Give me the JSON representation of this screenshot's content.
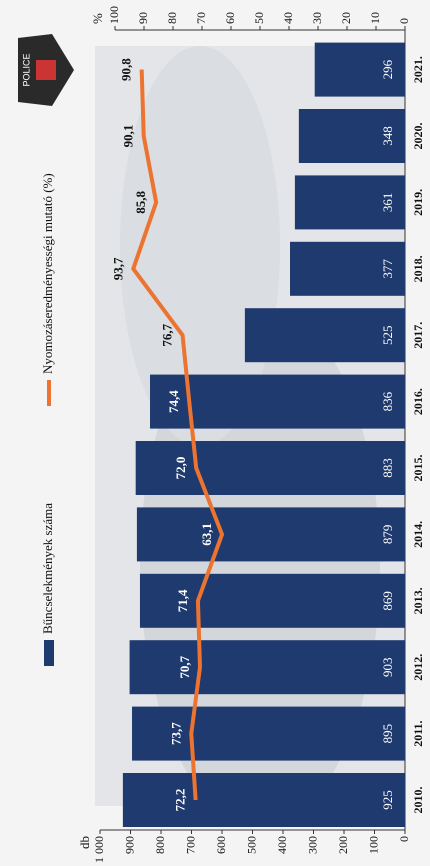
{
  "chart_data": {
    "type": "bar_line",
    "badge_text": "POLICE",
    "categories": [
      "2010.",
      "2011.",
      "2012.",
      "2013.",
      "2014.",
      "2015.",
      "2016.",
      "2017.",
      "2018.",
      "2019.",
      "2020.",
      "2021."
    ],
    "series": [
      {
        "name": "Bűncselekmények száma",
        "type": "bar",
        "color": "#1f3a6e",
        "values": [
          925,
          895,
          903,
          869,
          879,
          883,
          836,
          525,
          377,
          361,
          348,
          296
        ]
      },
      {
        "name": "Nyomozáseredményességi mutató (%)",
        "type": "line",
        "axis": "y2",
        "color": "#ec7330",
        "values": [
          72.2,
          73.7,
          70.7,
          71.4,
          63.1,
          72.0,
          74.4,
          76.7,
          93.7,
          85.8,
          90.1,
          90.8
        ],
        "value_labels": [
          "72,2",
          "73,7",
          "70,7",
          "71,4",
          "63,1",
          "72,0",
          "74,4",
          "76,7",
          "93,7",
          "85,8",
          "90,1",
          "90,8"
        ]
      }
    ],
    "ylabel": "db",
    "ylim": [
      0,
      1000
    ],
    "yticks": [
      0,
      100,
      200,
      300,
      400,
      500,
      600,
      700,
      800,
      900,
      {
        "value": 1000,
        "label": "1 000"
      }
    ],
    "y2label": "%",
    "y2lim": [
      0,
      100
    ],
    "y2ticks": [
      0,
      10,
      20,
      30,
      40,
      50,
      60,
      70,
      80,
      90,
      100
    ]
  }
}
